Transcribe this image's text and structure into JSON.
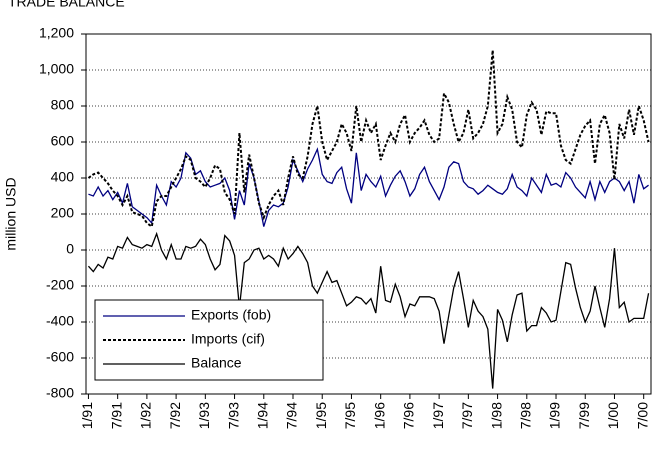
{
  "chart_data": {
    "type": "line",
    "title": "TRADE BALANCE",
    "y_label": "million USD",
    "categories": [
      "1/91",
      null,
      null,
      null,
      null,
      null,
      "7/91",
      null,
      null,
      null,
      null,
      null,
      "1/92",
      null,
      null,
      null,
      null,
      null,
      "7/92",
      null,
      null,
      null,
      null,
      null,
      "1/93",
      null,
      null,
      null,
      null,
      null,
      "7/93",
      null,
      null,
      null,
      null,
      null,
      "1/94",
      null,
      null,
      null,
      null,
      null,
      "7/94",
      null,
      null,
      null,
      null,
      null,
      "1/95",
      null,
      null,
      null,
      null,
      null,
      "7/95",
      null,
      null,
      null,
      null,
      null,
      "1/96",
      null,
      null,
      null,
      null,
      null,
      "7/96",
      null,
      null,
      null,
      null,
      null,
      "1/97",
      null,
      null,
      null,
      null,
      null,
      "7/97",
      null,
      null,
      null,
      null,
      null,
      "1/98",
      null,
      null,
      null,
      null,
      null,
      "7/98",
      null,
      null,
      null,
      null,
      null,
      "1/99",
      null,
      null,
      null,
      null,
      null,
      "7/99",
      null,
      null,
      null,
      null,
      null,
      "1/00",
      null,
      null,
      null,
      null,
      null,
      "7/00",
      null
    ],
    "series": [
      {
        "name": "Exports (fob)",
        "color": "#000080",
        "dash": "solid",
        "values": [
          310,
          300,
          350,
          300,
          330,
          280,
          320,
          260,
          370,
          240,
          220,
          200,
          180,
          150,
          360,
          300,
          250,
          380,
          350,
          400,
          540,
          510,
          420,
          440,
          380,
          350,
          360,
          370,
          400,
          330,
          170,
          330,
          250,
          480,
          400,
          270,
          130,
          220,
          250,
          240,
          260,
          350,
          500,
          440,
          380,
          450,
          500,
          560,
          420,
          380,
          370,
          430,
          460,
          340,
          260,
          540,
          330,
          420,
          380,
          350,
          410,
          300,
          360,
          410,
          440,
          380,
          300,
          340,
          420,
          460,
          380,
          330,
          280,
          350,
          460,
          490,
          480,
          380,
          350,
          340,
          310,
          330,
          360,
          340,
          320,
          310,
          340,
          420,
          350,
          330,
          300,
          400,
          360,
          320,
          420,
          360,
          370,
          350,
          430,
          400,
          350,
          320,
          290,
          380,
          280,
          380,
          320,
          380,
          400,
          380,
          330,
          380,
          260,
          420,
          340,
          360
        ]
      },
      {
        "name": "Imports (cif)",
        "color": "#000000",
        "dash": "dashed",
        "values": [
          400,
          420,
          430,
          400,
          370,
          330,
          300,
          250,
          300,
          210,
          200,
          190,
          150,
          130,
          270,
          300,
          300,
          350,
          400,
          450,
          520,
          500,
          400,
          380,
          350,
          400,
          470,
          450,
          320,
          280,
          200,
          650,
          320,
          530,
          400,
          260,
          180,
          250,
          300,
          330,
          250,
          400,
          520,
          420,
          400,
          520,
          700,
          800,
          600,
          500,
          550,
          600,
          700,
          650,
          550,
          800,
          600,
          720,
          650,
          700,
          500,
          580,
          650,
          600,
          700,
          750,
          600,
          650,
          680,
          720,
          640,
          600,
          620,
          870,
          820,
          700,
          600,
          650,
          780,
          620,
          650,
          700,
          800,
          1110,
          650,
          700,
          850,
          780,
          600,
          570,
          750,
          820,
          780,
          640,
          770,
          760,
          760,
          580,
          500,
          480,
          560,
          640,
          690,
          720,
          480,
          700,
          750,
          650,
          390,
          700,
          620,
          780,
          640,
          800,
          720,
          600
        ]
      },
      {
        "name": "Balance",
        "color": "#000000",
        "dash": "solid",
        "values": [
          -90,
          -120,
          -80,
          -100,
          -40,
          -50,
          20,
          10,
          70,
          30,
          20,
          10,
          30,
          20,
          90,
          0,
          -50,
          30,
          -50,
          -50,
          20,
          10,
          20,
          60,
          30,
          -50,
          -110,
          -80,
          80,
          50,
          -30,
          -320,
          -70,
          -50,
          0,
          10,
          -50,
          -30,
          -50,
          -90,
          10,
          -50,
          -20,
          20,
          -20,
          -70,
          -200,
          -240,
          -180,
          -120,
          -180,
          -170,
          -240,
          -310,
          -290,
          -260,
          -270,
          -300,
          -270,
          -350,
          -90,
          -280,
          -290,
          -190,
          -260,
          -370,
          -300,
          -310,
          -260,
          -260,
          -260,
          -270,
          -340,
          -520,
          -360,
          -210,
          -120,
          -270,
          -430,
          -280,
          -340,
          -370,
          -440,
          -770,
          -330,
          -390,
          -510,
          -360,
          -250,
          -240,
          -450,
          -420,
          -420,
          -320,
          -350,
          -400,
          -390,
          -230,
          -70,
          -80,
          -210,
          -320,
          -400,
          -340,
          -200,
          -320,
          -430,
          -270,
          10,
          -320,
          -290,
          -400,
          -380,
          -380,
          -380,
          -240
        ]
      }
    ],
    "ylim": [
      -800,
      1200
    ],
    "yticks": [
      -800,
      -600,
      -400,
      -200,
      0,
      200,
      400,
      600,
      800,
      {
        "value": 1000,
        "label": "1,000"
      },
      {
        "value": 1200,
        "label": "1,200"
      }
    ],
    "grid": true,
    "legend": "lower left"
  }
}
